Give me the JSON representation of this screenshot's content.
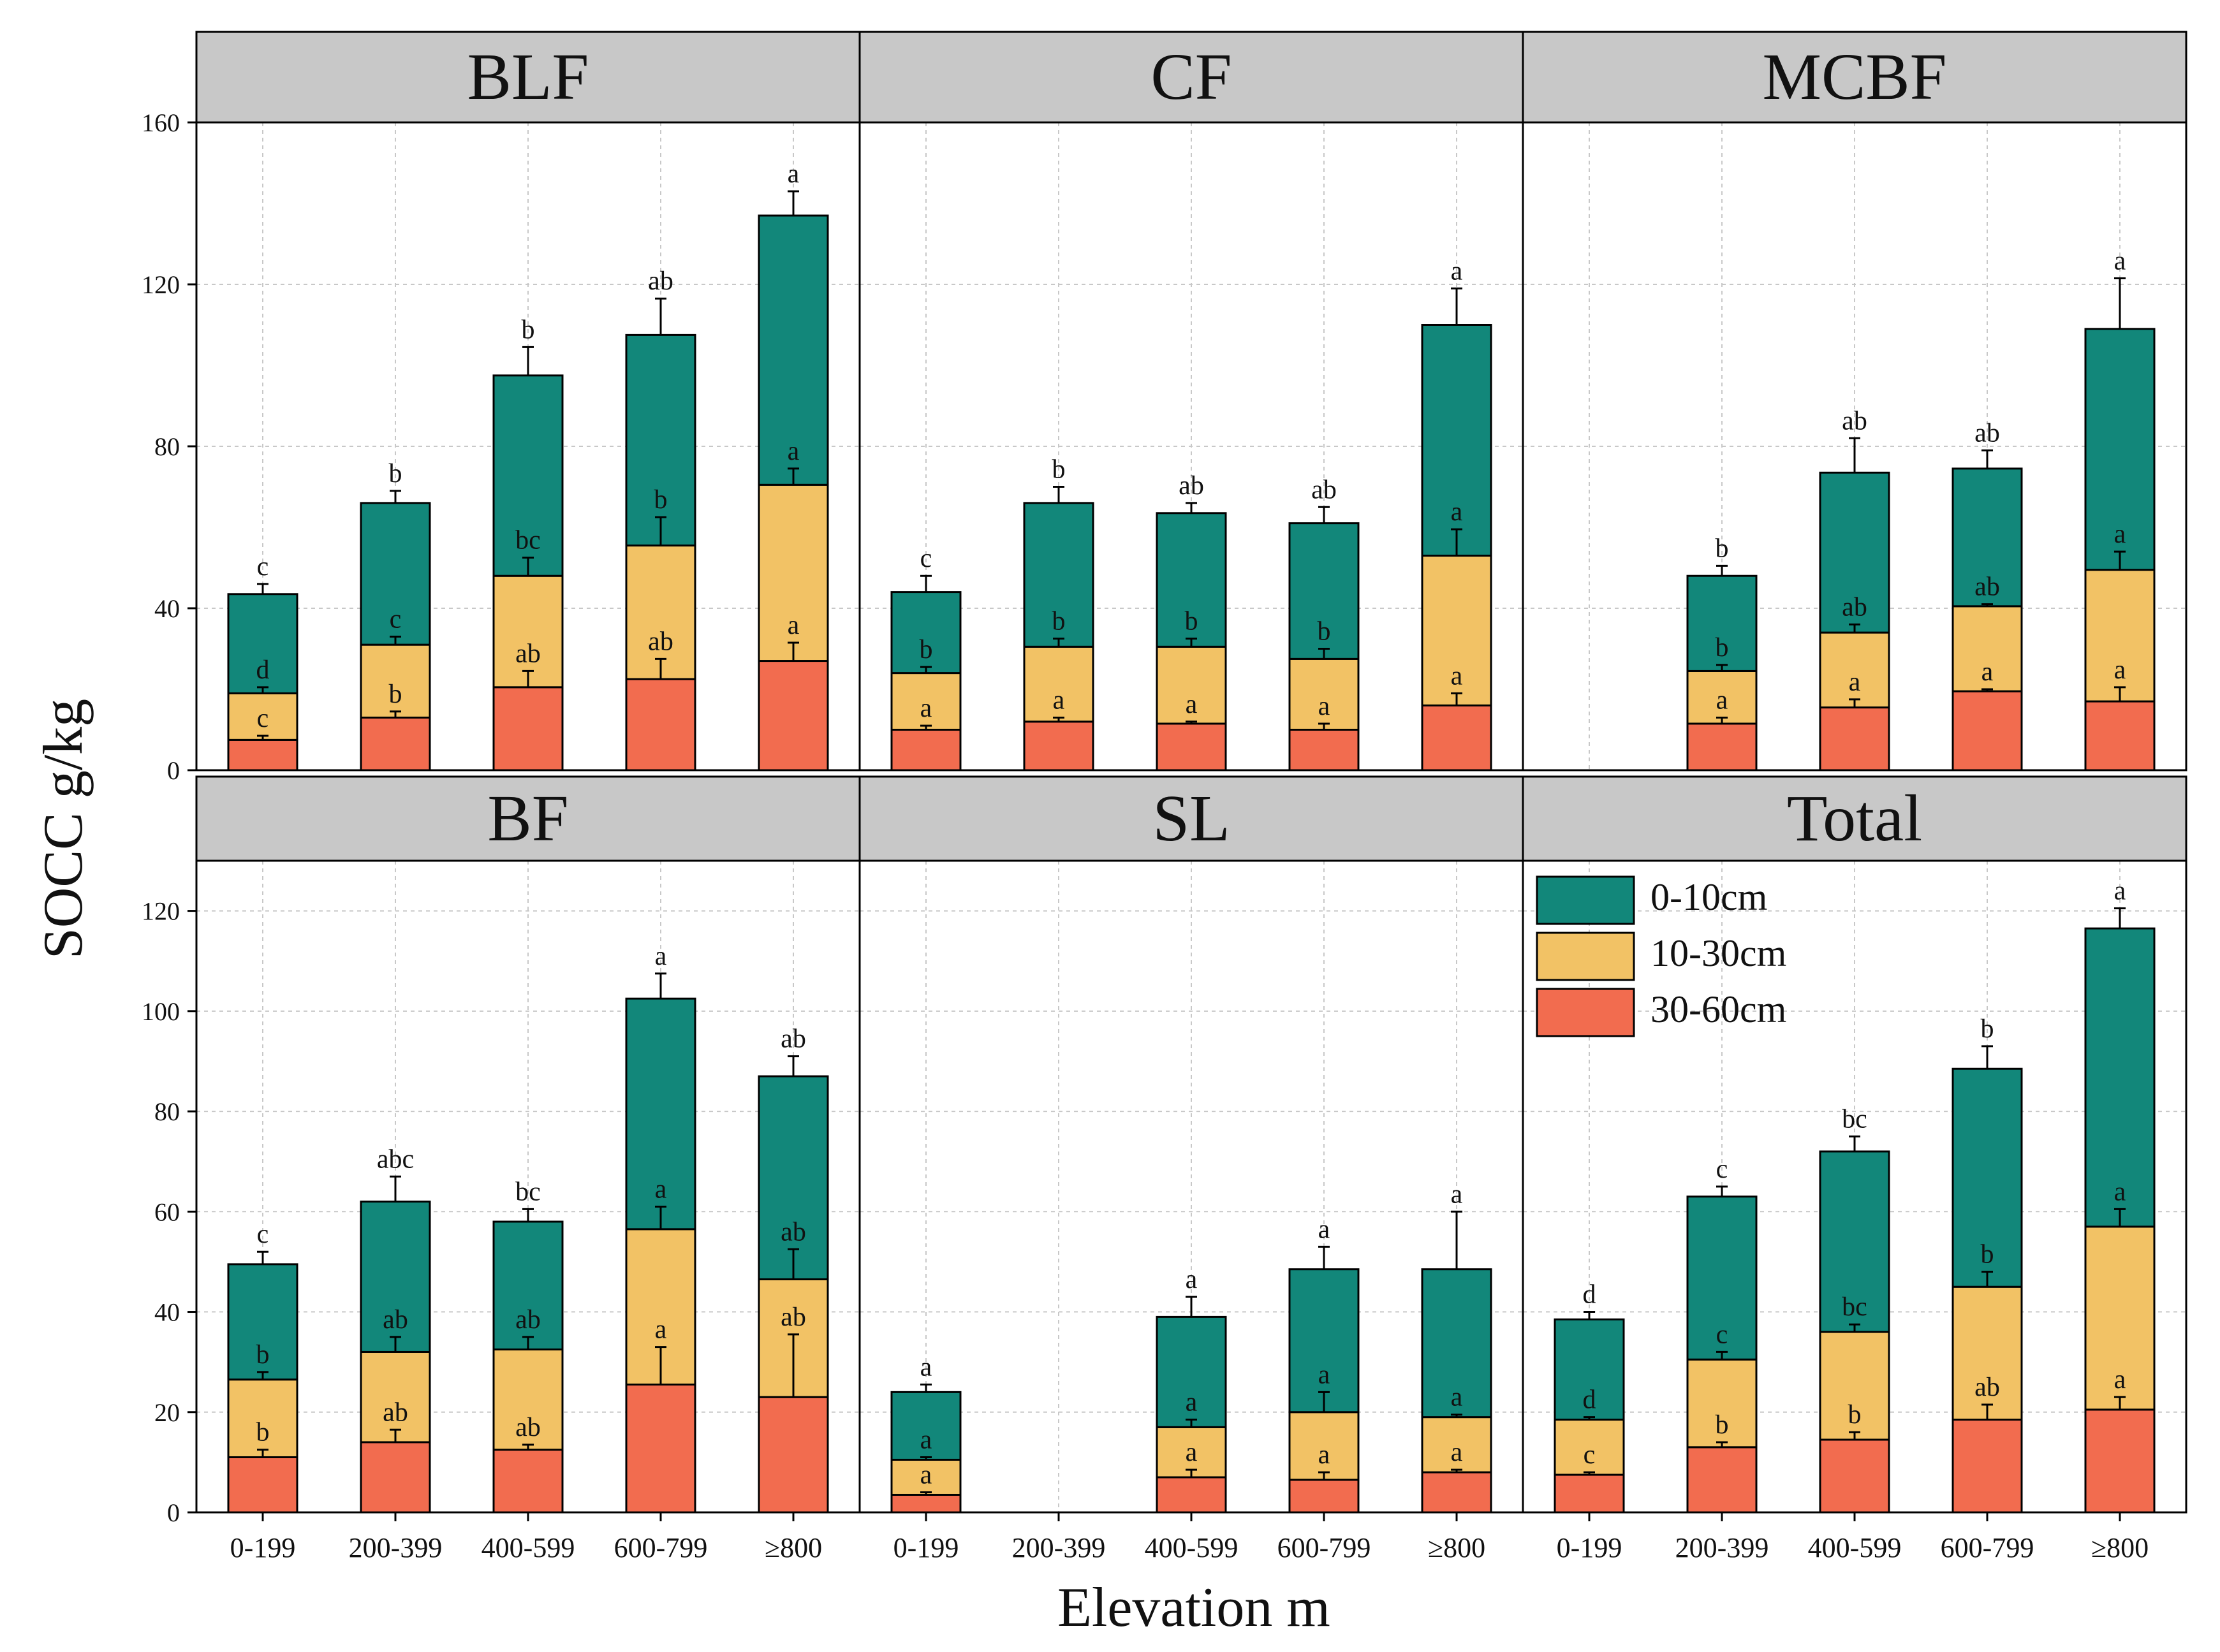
{
  "chart_data": {
    "type": "bar",
    "stacked": true,
    "ylabel": "SOCC g/kg",
    "xlabel": "Elevation m",
    "categories": [
      "0-199",
      "200-399",
      "400-599",
      "600-799",
      "≥800"
    ],
    "series_names": [
      "0-10cm",
      "10-30cm",
      "30-60cm"
    ],
    "colors": {
      "0-10cm": "#12877a",
      "10-30cm": "#f2c265",
      "30-60cm": "#f26c4f"
    },
    "legend": {
      "placement": "top-left of Total panel",
      "labels": [
        "0-10cm",
        "10-30cm",
        "30-60cm"
      ]
    },
    "rows": [
      {
        "ylim": [
          0,
          160
        ],
        "yticks": [
          0,
          40,
          80,
          120,
          160
        ]
      },
      {
        "ylim": [
          0,
          130
        ],
        "yticks": [
          0,
          20,
          40,
          60,
          80,
          100,
          120
        ]
      }
    ],
    "panels": [
      {
        "title": "BLF",
        "bars": [
          {
            "cat": "0-199",
            "totals": [
              43.5,
              19,
              7.5
            ],
            "err": [
              2.5,
              1.5,
              1
            ],
            "letters": [
              "c",
              "d",
              "c"
            ]
          },
          {
            "cat": "200-399",
            "totals": [
              66,
              31,
              13
            ],
            "err": [
              3,
              2,
              1.5
            ],
            "letters": [
              "b",
              "c",
              "b"
            ]
          },
          {
            "cat": "400-599",
            "totals": [
              97.5,
              48,
              20.5
            ],
            "err": [
              7,
              4.5,
              4
            ],
            "letters": [
              "b",
              "bc",
              "ab"
            ]
          },
          {
            "cat": "600-799",
            "totals": [
              107.5,
              55.5,
              22.5
            ],
            "err": [
              9,
              7,
              5
            ],
            "letters": [
              "ab",
              "b",
              "ab"
            ]
          },
          {
            "cat": "≥800",
            "totals": [
              137,
              70.5,
              27
            ],
            "err": [
              6,
              4,
              4.5
            ],
            "letters": [
              "a",
              "a",
              "a"
            ]
          }
        ]
      },
      {
        "title": "CF",
        "bars": [
          {
            "cat": "0-199",
            "totals": [
              44,
              24,
              10
            ],
            "err": [
              4,
              1.5,
              1
            ],
            "letters": [
              "c",
              "b",
              "a"
            ]
          },
          {
            "cat": "200-399",
            "totals": [
              66,
              30.5,
              12
            ],
            "err": [
              4,
              2,
              1
            ],
            "letters": [
              "b",
              "b",
              "a"
            ]
          },
          {
            "cat": "400-599",
            "totals": [
              63.5,
              30.5,
              11.5
            ],
            "err": [
              2.5,
              2,
              0.5
            ],
            "letters": [
              "ab",
              "b",
              "a"
            ]
          },
          {
            "cat": "600-799",
            "totals": [
              61,
              27.5,
              10
            ],
            "err": [
              4,
              2.5,
              1.5
            ],
            "letters": [
              "ab",
              "b",
              "a"
            ]
          },
          {
            "cat": "≥800",
            "totals": [
              110,
              53,
              16
            ],
            "err": [
              9,
              6.5,
              3
            ],
            "letters": [
              "a",
              "a",
              "a"
            ]
          }
        ]
      },
      {
        "title": "MCBF",
        "bars": [
          {
            "cat": "0-199",
            "totals": null,
            "err": null,
            "letters": null
          },
          {
            "cat": "200-399",
            "totals": [
              48,
              24.5,
              11.5
            ],
            "err": [
              2.5,
              1.5,
              1.5
            ],
            "letters": [
              "b",
              "b",
              "a"
            ]
          },
          {
            "cat": "400-599",
            "totals": [
              73.5,
              34,
              15.5
            ],
            "err": [
              8.5,
              2,
              2
            ],
            "letters": [
              "ab",
              "ab",
              "a"
            ]
          },
          {
            "cat": "600-799",
            "totals": [
              74.5,
              40.5,
              19.5
            ],
            "err": [
              4.5,
              0.5,
              0.5
            ],
            "letters": [
              "ab",
              "ab",
              "a"
            ]
          },
          {
            "cat": "≥800",
            "totals": [
              109,
              49.5,
              17
            ],
            "err": [
              12.5,
              4.5,
              3.5
            ],
            "letters": [
              "a",
              "a",
              "a"
            ]
          }
        ]
      },
      {
        "title": "BF",
        "bars": [
          {
            "cat": "0-199",
            "totals": [
              49.5,
              26.5,
              11
            ],
            "err": [
              2.5,
              1.5,
              1.5
            ],
            "letters": [
              "c",
              "b",
              "b"
            ]
          },
          {
            "cat": "200-399",
            "totals": [
              62,
              32,
              14
            ],
            "err": [
              5,
              3,
              2.5
            ],
            "letters": [
              "abc",
              "ab",
              "ab"
            ]
          },
          {
            "cat": "400-599",
            "totals": [
              58,
              32.5,
              12.5
            ],
            "err": [
              2.5,
              2.5,
              1
            ],
            "letters": [
              "bc",
              "ab",
              "ab"
            ]
          },
          {
            "cat": "600-799",
            "totals": [
              102.5,
              56.5,
              25.5
            ],
            "err": [
              5,
              4.5,
              7.5
            ],
            "letters": [
              "a",
              "a",
              "a"
            ]
          },
          {
            "cat": "≥800",
            "totals": [
              87,
              46.5,
              23
            ],
            "err": [
              4,
              6,
              12.5
            ],
            "letters": [
              "ab",
              "ab",
              "ab"
            ]
          }
        ]
      },
      {
        "title": "SL",
        "bars": [
          {
            "cat": "0-199",
            "totals": [
              24,
              10.5,
              3.5
            ],
            "err": [
              1.5,
              0.5,
              0.5
            ],
            "letters": [
              "a",
              "a",
              "a"
            ]
          },
          {
            "cat": "200-399",
            "totals": null,
            "err": null,
            "letters": null
          },
          {
            "cat": "400-599",
            "totals": [
              39,
              17,
              7
            ],
            "err": [
              4,
              1.5,
              1.5
            ],
            "letters": [
              "a",
              "a",
              "a"
            ]
          },
          {
            "cat": "600-799",
            "totals": [
              48.5,
              20,
              6.5
            ],
            "err": [
              4.5,
              4,
              1.5
            ],
            "letters": [
              "a",
              "a",
              "a"
            ]
          },
          {
            "cat": "≥800",
            "totals": [
              48.5,
              19,
              8
            ],
            "err": [
              11.5,
              0.5,
              0.5
            ],
            "letters": [
              "a",
              "a",
              "a"
            ]
          }
        ]
      },
      {
        "title": "Total",
        "bars": [
          {
            "cat": "0-199",
            "totals": [
              38.5,
              18.5,
              7.5
            ],
            "err": [
              1.5,
              0.5,
              0.5
            ],
            "letters": [
              "d",
              "d",
              "c"
            ]
          },
          {
            "cat": "200-399",
            "totals": [
              63,
              30.5,
              13
            ],
            "err": [
              2,
              1.5,
              1
            ],
            "letters": [
              "c",
              "c",
              "b"
            ]
          },
          {
            "cat": "400-599",
            "totals": [
              72,
              36,
              14.5
            ],
            "err": [
              3,
              1.5,
              1.5
            ],
            "letters": [
              "bc",
              "bc",
              "b"
            ]
          },
          {
            "cat": "600-799",
            "totals": [
              88.5,
              45,
              18.5
            ],
            "err": [
              4.5,
              3,
              3
            ],
            "letters": [
              "b",
              "b",
              "ab"
            ]
          },
          {
            "cat": "≥800",
            "totals": [
              116.5,
              57,
              20.5
            ],
            "err": [
              4,
              3.5,
              2.5
            ],
            "letters": [
              "a",
              "a",
              "a"
            ]
          }
        ]
      }
    ]
  }
}
